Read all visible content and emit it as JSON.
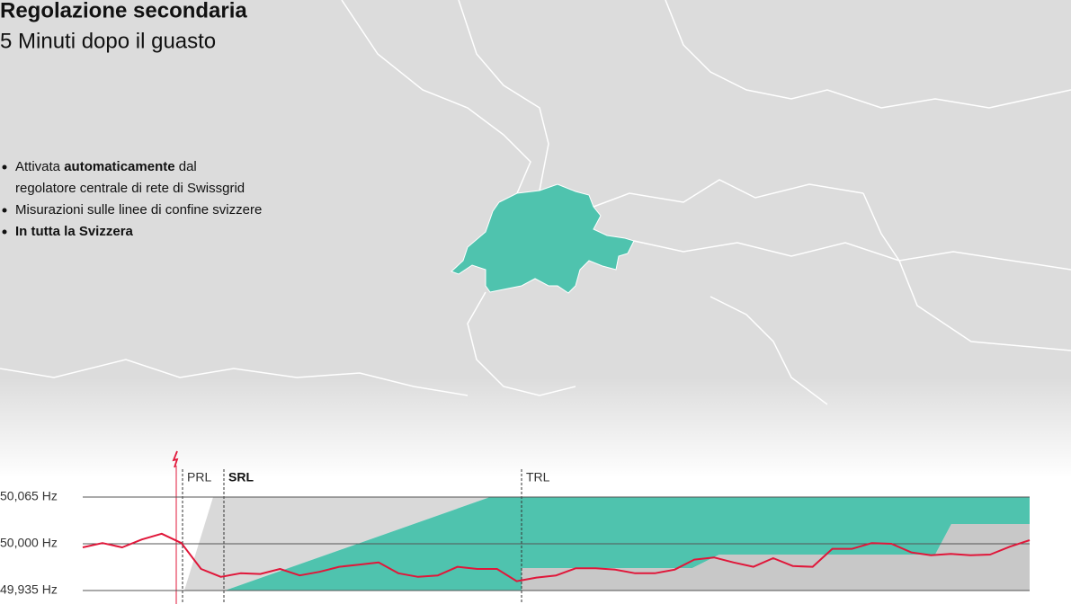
{
  "header": {
    "title": "Regolazione secondaria",
    "subtitle": "5 Minuti dopo il guasto"
  },
  "bullets": [
    {
      "parts": [
        "Attivata ",
        "automaticamente",
        " dal"
      ],
      "continuation": "regolatore centrale di rete di Swissgrid"
    },
    {
      "parts": [
        "Misurazioni sulle linee di confine svizzere"
      ]
    },
    {
      "parts": [
        "In tutta la Svizzera"
      ]
    }
  ],
  "chart_data": {
    "type": "line",
    "phases": [
      "PRL",
      "SRL",
      "TRL"
    ],
    "ylim": [
      49.935,
      50.065
    ],
    "yticks": [
      {
        "value": 50.065,
        "label": "50,065 Hz"
      },
      {
        "value": 50.0,
        "label": "50,000 Hz"
      },
      {
        "value": 49.935,
        "label": "49,935 Hz"
      }
    ],
    "grid": true,
    "series": [
      {
        "color": "#e0173a",
        "values": [
          49.995,
          50.001,
          49.995,
          50.006,
          50.014,
          50.001,
          49.965,
          49.954,
          49.959,
          49.958,
          49.965,
          49.956,
          49.961,
          49.968,
          49.971,
          49.974,
          49.959,
          49.954,
          49.956,
          49.968,
          49.965,
          49.965,
          49.948,
          49.953,
          49.956,
          49.966,
          49.966,
          49.964,
          49.959,
          49.959,
          49.964,
          49.978,
          49.981,
          49.974,
          49.968,
          49.98,
          49.969,
          49.968,
          49.993,
          49.993,
          50.001,
          50.0,
          49.988,
          49.984,
          49.986,
          49.984,
          49.985,
          49.996,
          50.005
        ]
      }
    ]
  }
}
